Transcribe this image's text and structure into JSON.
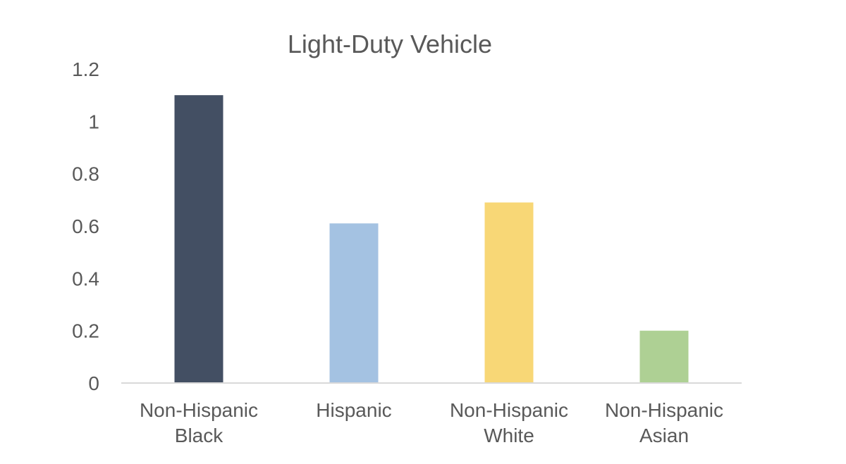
{
  "chart_data": {
    "type": "bar",
    "title": "Light-Duty Vehicle",
    "xlabel": "",
    "ylabel": "",
    "ylim": [
      0,
      1.2
    ],
    "yticks": [
      "0",
      "0.2",
      "0.4",
      "0.6",
      "0.8",
      "1",
      "1.2"
    ],
    "grid": false,
    "legend": "none",
    "categories": [
      [
        "Non-Hispanic",
        "Black"
      ],
      [
        "Hispanic"
      ],
      [
        "Non-Hispanic",
        "White"
      ],
      [
        "Non-Hispanic",
        "Asian"
      ]
    ],
    "values": [
      1.1,
      0.61,
      0.69,
      0.2
    ],
    "colors": [
      "#434F63",
      "#A4C2E2",
      "#F8D776",
      "#AED094"
    ]
  }
}
